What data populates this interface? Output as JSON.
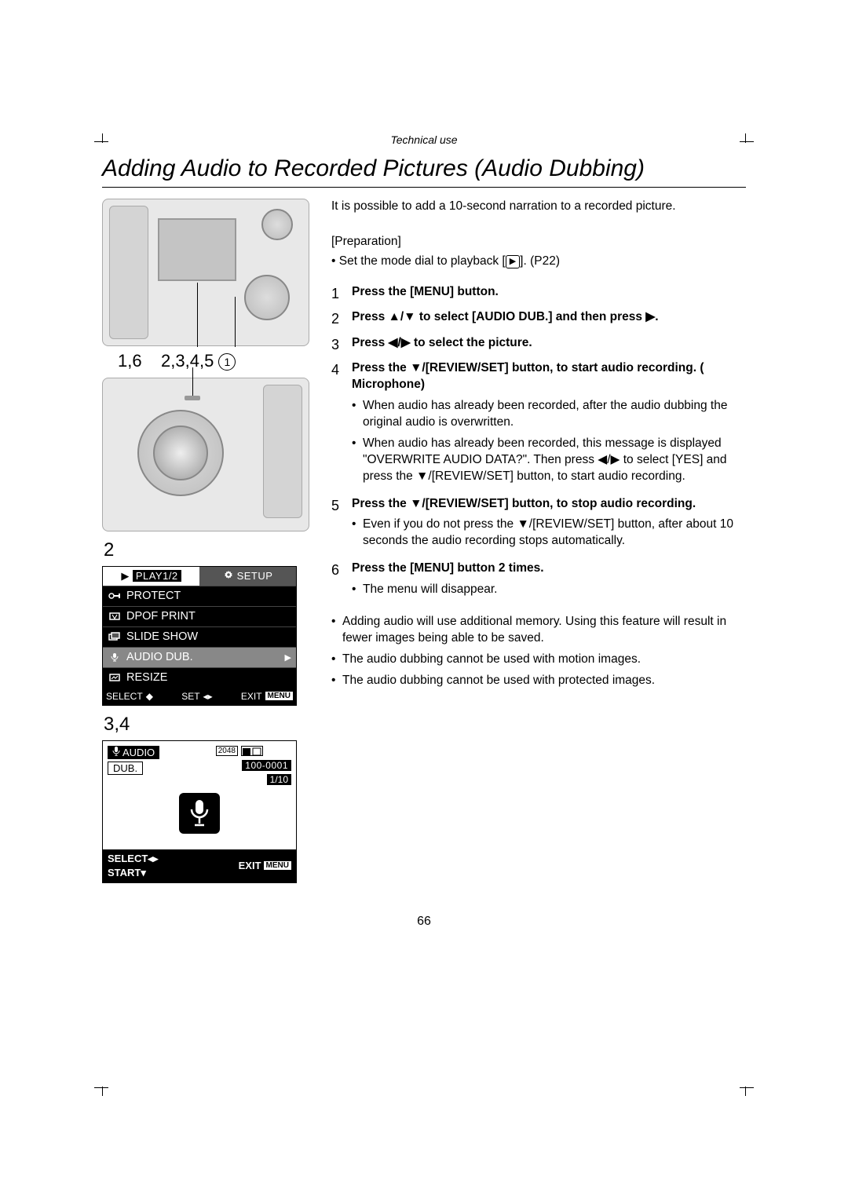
{
  "section_label": "Technical use",
  "title": "Adding Audio to Recorded Pictures (Audio Dubbing)",
  "callout_labels": {
    "left": "1,6",
    "right": "2,3,4,5",
    "circle": "1"
  },
  "figure2_label": "2",
  "figure34_label": "3,4",
  "menu": {
    "tab_active": "PLAY1/2",
    "tab_inactive": "SETUP",
    "items": [
      "PROTECT",
      "DPOF PRINT",
      "SLIDE SHOW",
      "AUDIO DUB.",
      "RESIZE"
    ],
    "selected_index": 3,
    "footer_select": "SELECT",
    "footer_set": "SET",
    "footer_exit": "EXIT",
    "footer_menu": "MENU"
  },
  "dub": {
    "audio_label": "AUDIO",
    "dub_label": "DUB.",
    "resolution": "2048",
    "file_no": "100-0001",
    "counter": "1/10",
    "select_label": "SELECT",
    "start_label": "START",
    "exit_label": "EXIT",
    "menu_label": "MENU"
  },
  "intro": {
    "line1": "It is possible to add a 10-second narration to a recorded picture.",
    "prep_heading": "[Preparation]",
    "prep_bullet": "Set the mode dial to playback [",
    "prep_bullet_suffix": "]. (P22)"
  },
  "steps": [
    {
      "num": "1",
      "text": "Press the [MENU] button."
    },
    {
      "num": "2",
      "text": "Press ▲/▼ to select [AUDIO DUB.] and then press ▶."
    },
    {
      "num": "3",
      "text": "Press ◀/▶ to select the picture."
    },
    {
      "num": "4",
      "text": "Press the ▼/[REVIEW/SET] button, to start audio recording. (    Microphone)",
      "bullets": [
        "When audio has already been recorded, after the audio dubbing the original audio is overwritten.",
        "When audio has already been recorded, this message is displayed \"OVERWRITE AUDIO DATA?\". Then press ◀/▶ to select [YES] and press the ▼/[REVIEW/SET] button, to start audio recording."
      ]
    },
    {
      "num": "5",
      "text": "Press the ▼/[REVIEW/SET] button, to stop audio recording.",
      "bullets": [
        "Even if you do not press the ▼/[REVIEW/SET] button, after about 10 seconds the audio recording stops automatically."
      ]
    },
    {
      "num": "6",
      "text": "Press the [MENU] button 2 times.",
      "bullets": [
        "The menu will disappear."
      ]
    }
  ],
  "notes": [
    "Adding audio will use additional memory. Using this feature will result in fewer images being able to be saved.",
    "The audio dubbing cannot be used with motion images.",
    "The audio dubbing cannot be used with protected images."
  ],
  "page_number": "66"
}
